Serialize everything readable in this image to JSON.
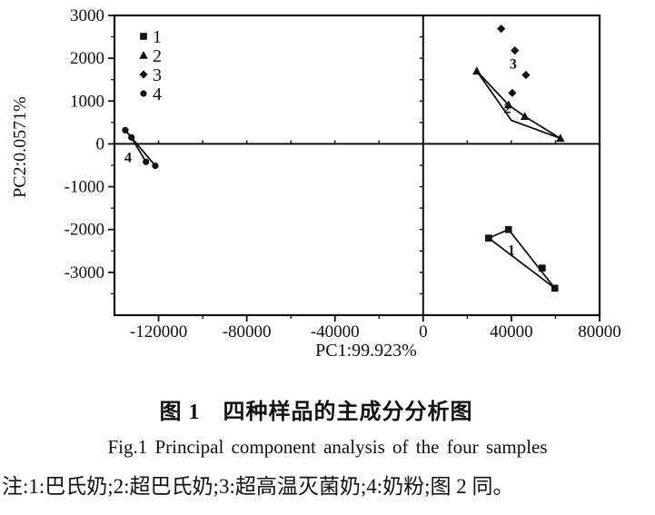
{
  "figure": {
    "caption_zh": "图 1　四种样品的主成分分析图",
    "caption_en": "Fig.1  Principal component analysis of the four samples",
    "note": "注:1:巴氏奶;2:超巴氏奶;3:超高温灭菌奶;4:奶粉;图 2 同。"
  },
  "colors": {
    "ink": "#101010",
    "paper": "#ffffff"
  },
  "chart_data": {
    "type": "scatter",
    "title": "",
    "xlabel": "PC1:99.923%",
    "ylabel": "PC2:0.0571%",
    "xlim": [
      -140000,
      80000
    ],
    "ylim": [
      -4000,
      3000
    ],
    "x_major_ticks": [
      -120000,
      -80000,
      -40000,
      0,
      40000,
      80000
    ],
    "x_minor_step": 20000,
    "y_major_ticks": [
      -3000,
      -2000,
      -1000,
      0,
      1000,
      2000,
      3000
    ],
    "y_minor_step": 500,
    "grid": false,
    "zero_axes": true,
    "legend": {
      "position": "top-left",
      "entries": [
        {
          "label": "1",
          "marker": "square"
        },
        {
          "label": "2",
          "marker": "triangle"
        },
        {
          "label": "3",
          "marker": "diamond"
        },
        {
          "label": "4",
          "marker": "circle"
        }
      ]
    },
    "series": [
      {
        "name": "1",
        "marker": "square",
        "cluster_label": "1",
        "label_at": [
          40000,
          -2480
        ],
        "points": [
          [
            29700,
            -2200
          ],
          [
            38700,
            -2000
          ],
          [
            54000,
            -2900
          ],
          [
            59700,
            -3370
          ]
        ],
        "lines": [
          [
            [
              29700,
              -2200
            ],
            [
              38700,
              -2000
            ],
            [
              59700,
              -3370
            ],
            [
              29700,
              -2200
            ]
          ]
        ]
      },
      {
        "name": "2",
        "marker": "triangle",
        "cluster_label": "2",
        "label_at": [
          38200,
          830
        ],
        "points": [
          [
            24300,
            1700
          ],
          [
            38700,
            910
          ],
          [
            46100,
            640
          ],
          [
            62200,
            130
          ]
        ],
        "lines": [
          [
            [
              24300,
              1700
            ],
            [
              38700,
              910
            ],
            [
              46100,
              640
            ],
            [
              62200,
              130
            ],
            [
              40000,
              550
            ],
            [
              24300,
              1700
            ]
          ]
        ]
      },
      {
        "name": "3",
        "marker": "diamond",
        "cluster_label": "3",
        "label_at": [
          40800,
          1860
        ],
        "points": [
          [
            35400,
            2690
          ],
          [
            41600,
            2180
          ],
          [
            46600,
            1610
          ],
          [
            40400,
            1190
          ]
        ],
        "lines": []
      },
      {
        "name": "4",
        "marker": "circle",
        "cluster_label": "4",
        "label_at": [
          -133800,
          -320
        ],
        "points": [
          [
            -135100,
            320
          ],
          [
            -132300,
            150
          ],
          [
            -125700,
            -420
          ],
          [
            -121500,
            -510
          ]
        ],
        "lines": [
          [
            [
              -135100,
              320
            ],
            [
              -132300,
              150
            ]
          ],
          [
            [
              -135100,
              320
            ],
            [
              -121500,
              -510
            ]
          ],
          [
            [
              -132300,
              150
            ],
            [
              -125700,
              -420
            ]
          ]
        ]
      }
    ]
  }
}
